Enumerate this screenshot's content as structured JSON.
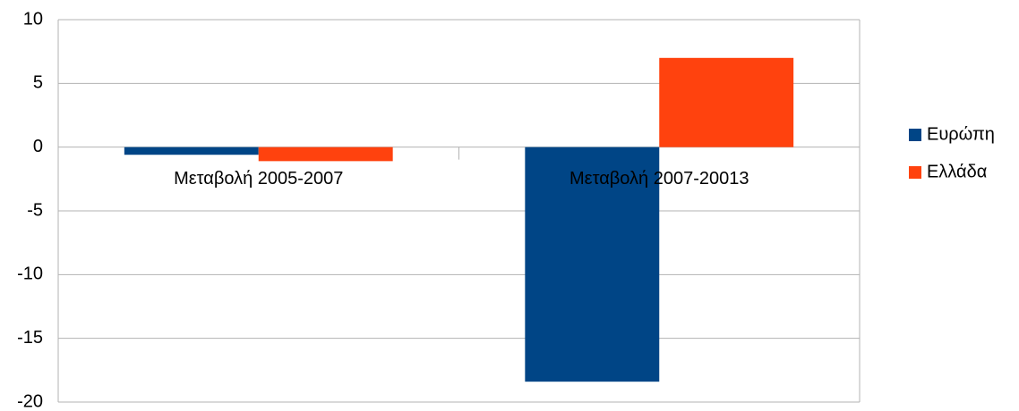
{
  "chart_data": {
    "type": "bar",
    "categories": [
      "Μεταβολή 2005-2007",
      "Μεταβολή 2007-20013"
    ],
    "series": [
      {
        "name": "Ευρώπη",
        "color": "#004586",
        "values": [
          -0.6,
          -18.4
        ]
      },
      {
        "name": "Ελλάδα",
        "color": "#ff420e",
        "values": [
          -1.1,
          7
        ]
      }
    ],
    "ylim": [
      -20,
      10
    ],
    "yticks": [
      -20,
      -15,
      -10,
      -5,
      0,
      5,
      10
    ],
    "grid": true,
    "legend": "right"
  }
}
